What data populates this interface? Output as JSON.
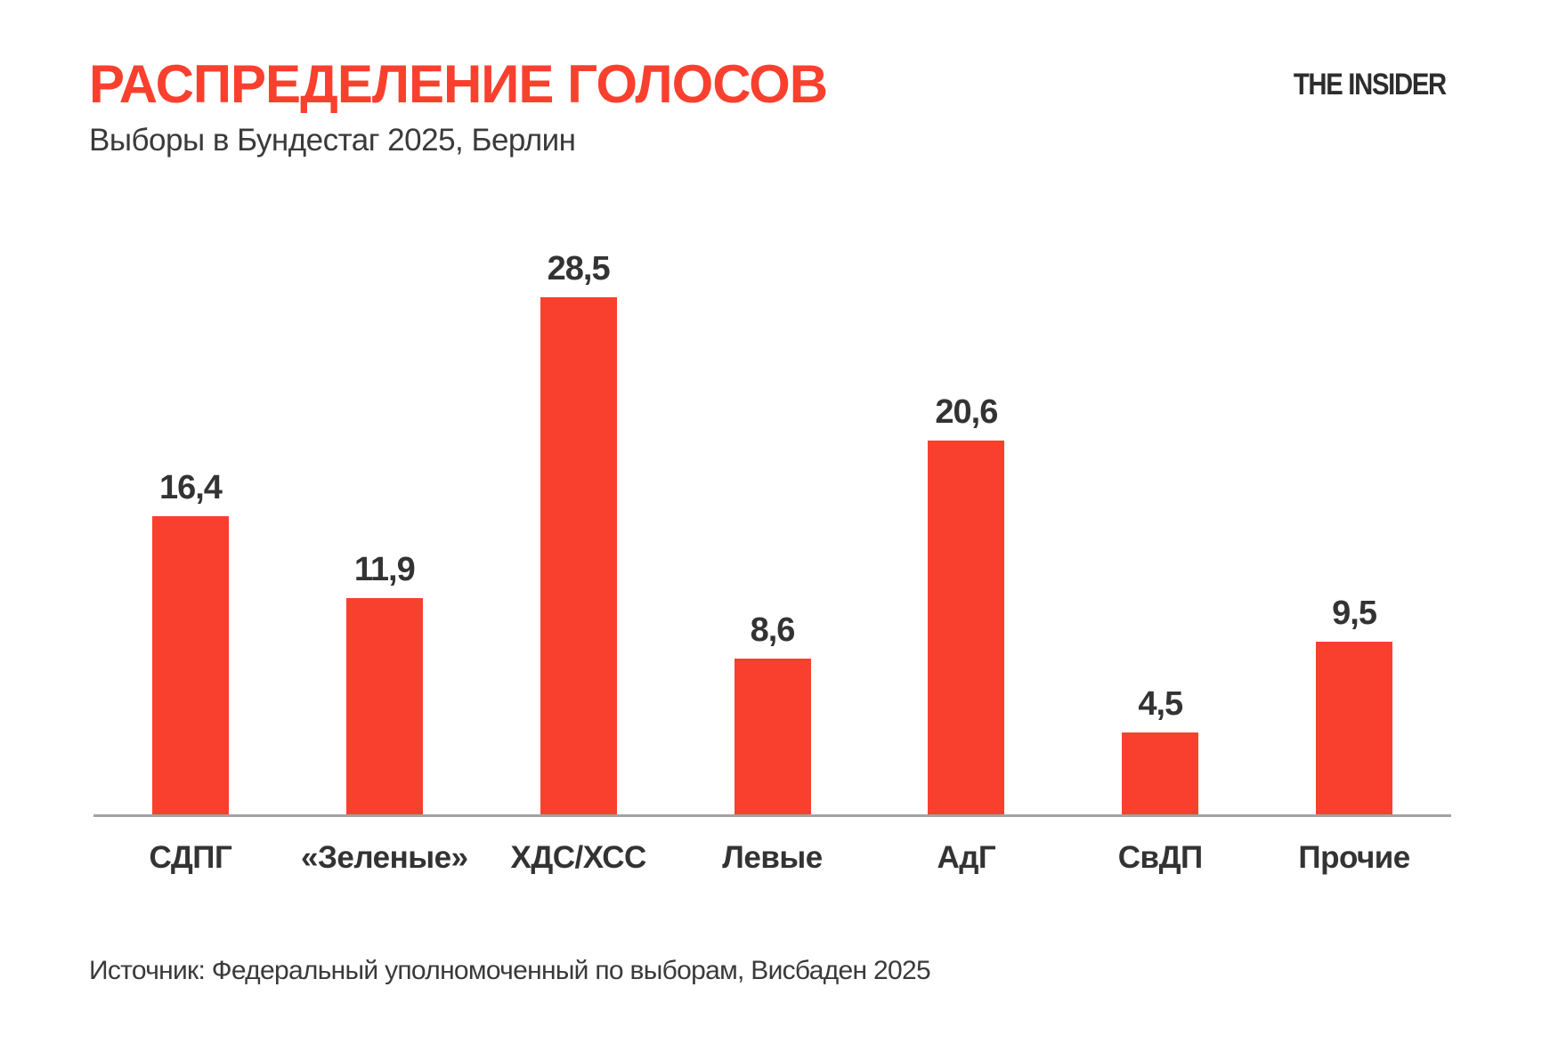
{
  "header": {
    "title": "РАСПРЕДЕЛЕНИЕ ГОЛОСОВ",
    "subtitle": "Выборы в Бундестаг 2025, Берлин",
    "logo": "THE INSIDER"
  },
  "chart_data": {
    "type": "bar",
    "title": "РАСПРЕДЕЛЕНИЕ ГОЛОСОВ",
    "subtitle": "Выборы в Бундестаг 2025, Берлин",
    "categories": [
      "СДПГ",
      "«Зеленые»",
      "ХДС/ХСС",
      "Левые",
      "АдГ",
      "СвДП",
      "Прочие"
    ],
    "values": [
      16.4,
      11.9,
      28.5,
      8.6,
      20.6,
      4.5,
      9.5
    ],
    "value_labels": [
      "16,4",
      "11,9",
      "28,5",
      "8,6",
      "20,6",
      "4,5",
      "9,5"
    ],
    "xlabel": "",
    "ylabel": "",
    "ylim": [
      0,
      30
    ],
    "grid": false,
    "legend": "none",
    "bar_color": "#F9402E",
    "decimal_separator": ","
  },
  "footer": {
    "source": "Источник: Федеральный уполномоченный по выборам, Висбаден 2025"
  },
  "colors": {
    "accent_red": "#F9402E",
    "text_dark": "#333333",
    "axis_gray": "#A2A2A2",
    "background": "#FFFFFF"
  }
}
